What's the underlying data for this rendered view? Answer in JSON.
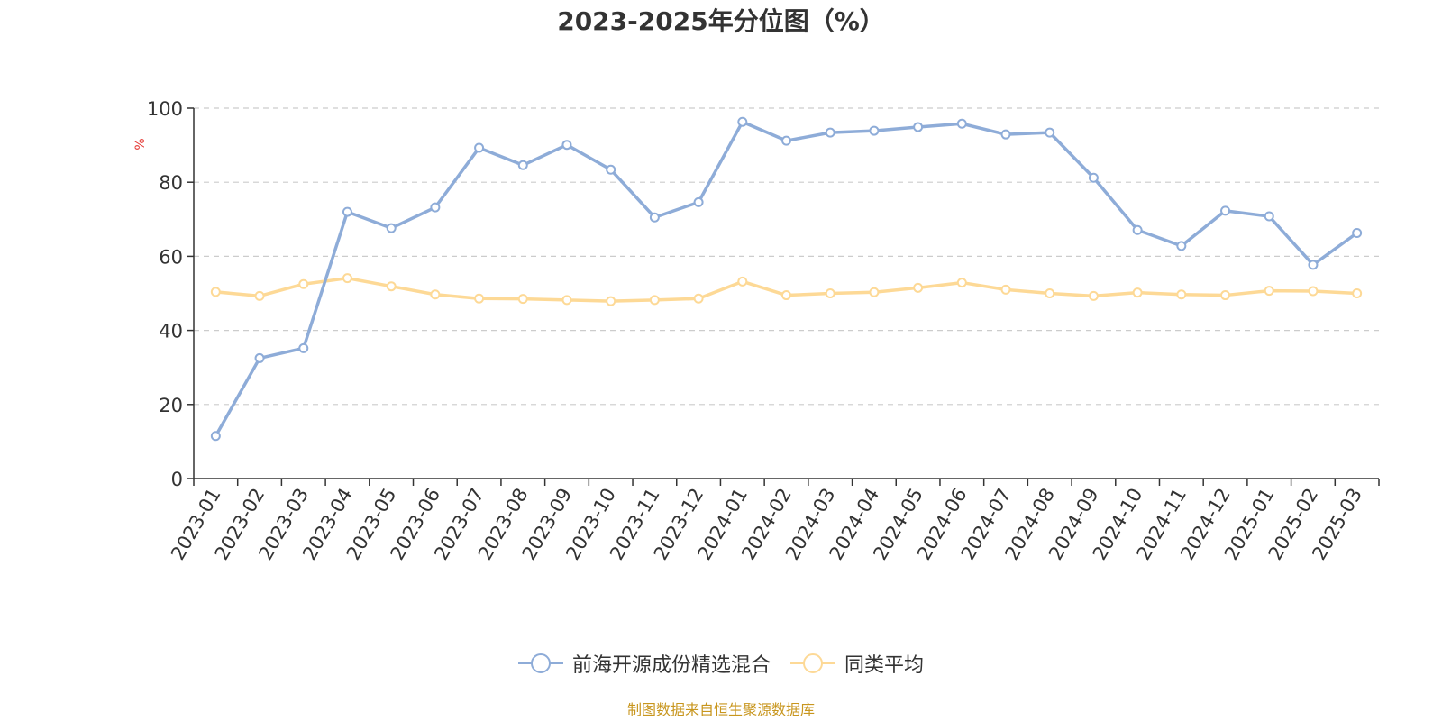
{
  "chart_data": {
    "type": "line",
    "title": "2023-2025年分位图（%）",
    "ylabel": "%",
    "xlabel": "",
    "ylim": [
      0,
      100
    ],
    "yticks": [
      0,
      20,
      40,
      60,
      80,
      100
    ],
    "grid": true,
    "legend_position": "bottom",
    "categories": [
      "2023-01",
      "2023-02",
      "2023-03",
      "2023-04",
      "2023-05",
      "2023-06",
      "2023-07",
      "2023-08",
      "2023-09",
      "2023-10",
      "2023-11",
      "2023-12",
      "2024-01",
      "2024-02",
      "2024-03",
      "2024-04",
      "2024-05",
      "2024-06",
      "2024-07",
      "2024-08",
      "2024-09",
      "2024-10",
      "2024-11",
      "2024-12",
      "2025-01",
      "2025-02",
      "2025-03"
    ],
    "series": [
      {
        "name": "前海开源成份精选混合",
        "color": "#8eacd8",
        "values": [
          11.5,
          32.5,
          35.2,
          72.0,
          67.6,
          73.2,
          89.3,
          84.6,
          90.1,
          83.4,
          70.5,
          74.6,
          96.3,
          91.2,
          93.4,
          93.9,
          94.9,
          95.8,
          92.9,
          93.4,
          81.2,
          67.1,
          62.8,
          72.3,
          70.8,
          57.7,
          66.3
        ]
      },
      {
        "name": "同类平均",
        "color": "#fdd996",
        "values": [
          50.4,
          49.3,
          52.5,
          54.1,
          51.9,
          49.7,
          48.6,
          48.5,
          48.2,
          47.9,
          48.2,
          48.6,
          53.2,
          49.5,
          50.0,
          50.3,
          51.5,
          52.9,
          51.0,
          50.0,
          49.3,
          50.2,
          49.7,
          49.5,
          50.7,
          50.6,
          50.0
        ]
      }
    ]
  },
  "colors": {
    "unit_label": "#e53935",
    "source_text": "#c8961e",
    "axis": "#333333",
    "grid": "#cccccc"
  },
  "source_text": "制图数据来自恒生聚源数据库"
}
